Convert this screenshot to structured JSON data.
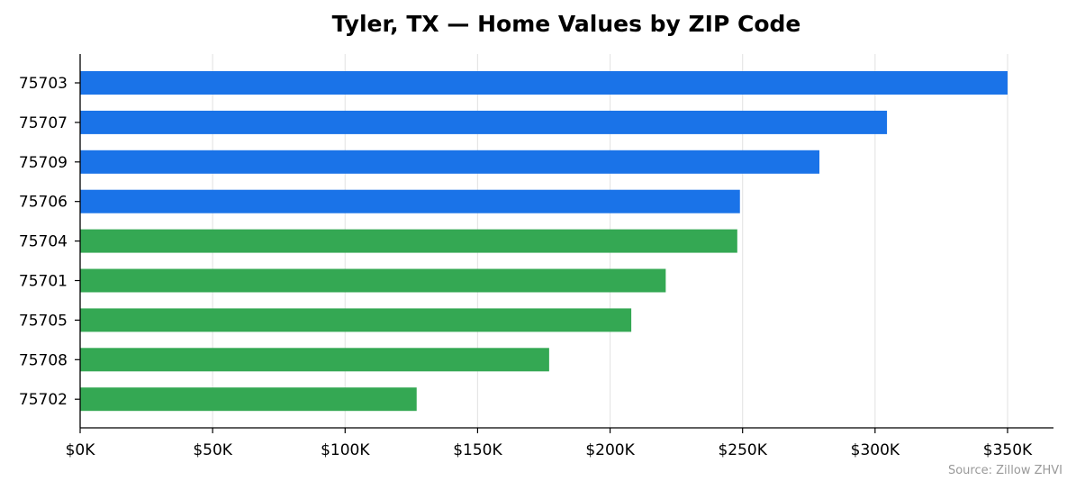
{
  "chart_data": {
    "type": "bar",
    "orientation": "horizontal",
    "title": "Tyler, TX — Home Values by ZIP Code",
    "xlabel": "",
    "ylabel": "",
    "categories": [
      "75703",
      "75707",
      "75709",
      "75706",
      "75704",
      "75701",
      "75705",
      "75708",
      "75702"
    ],
    "values": [
      350000,
      304500,
      279000,
      249000,
      248000,
      221000,
      208000,
      177000,
      127000
    ],
    "bar_colors": [
      "#1a73e8",
      "#1a73e8",
      "#1a73e8",
      "#1a73e8",
      "#34a853",
      "#34a853",
      "#34a853",
      "#34a853",
      "#34a853"
    ],
    "xlim": [
      0,
      367000
    ],
    "xticks": [
      0,
      50000,
      100000,
      150000,
      200000,
      250000,
      300000,
      350000
    ],
    "xtick_labels": [
      "$0K",
      "$50K",
      "$100K",
      "$150K",
      "$200K",
      "$250K",
      "$300K",
      "$350K"
    ],
    "grid": "vertical",
    "source": "Source: Zillow ZHVI"
  }
}
